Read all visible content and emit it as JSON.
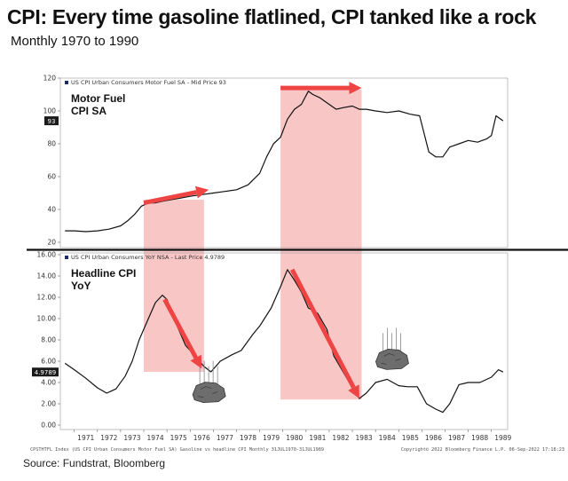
{
  "title": "CPI: Every time gasoline flatlined, CPI tanked like a rock",
  "subtitle": "Monthly 1970 to 1990",
  "source": "Source: Fundstrat, Bloomberg",
  "footer_left": "CPSTHTFL Index (US CPI Urban Consumers Motor Fuel SA) Gasoline vs headline CPI  Monthly 31JUL1970-31JUL1989",
  "footer_right": "Copyright© 2022 Bloomberg Finance L.P.   06-Sep-2022 17:18:23",
  "colors": {
    "line": "#111111",
    "band": "#f7b3b3",
    "arrow": "#ee4444",
    "tag": "#1a1a1a"
  },
  "chart_data": [
    {
      "type": "line",
      "panel_label": [
        "Motor Fuel",
        "CPI SA"
      ],
      "legend": "US CPI Urban Consumers Motor Fuel SA - Mid Price 93",
      "last_value_label": "93",
      "ylim": [
        20,
        120
      ],
      "yticks": [
        20,
        40,
        60,
        80,
        100,
        120
      ],
      "ytick_labels": [
        "20",
        "40",
        "60",
        "80",
        "100",
        "120"
      ],
      "x": [
        1970.6,
        1971.0,
        1971.5,
        1972.0,
        1972.5,
        1973.0,
        1973.3,
        1973.6,
        1973.9,
        1974.2,
        1974.5,
        1974.8,
        1975.2,
        1975.6,
        1976.0,
        1976.5,
        1977.0,
        1977.5,
        1978.0,
        1978.5,
        1979.0,
        1979.3,
        1979.6,
        1979.9,
        1980.2,
        1980.5,
        1980.8,
        1981.1,
        1981.3,
        1981.6,
        1982.0,
        1982.3,
        1982.6,
        1983.0,
        1983.3,
        1983.6,
        1984.0,
        1984.5,
        1985.0,
        1985.5,
        1985.9,
        1986.1,
        1986.3,
        1986.6,
        1986.9,
        1987.2,
        1987.6,
        1988.0,
        1988.4,
        1988.8,
        1989.0,
        1989.2,
        1989.5
      ],
      "y": [
        27,
        27,
        26.5,
        27,
        28,
        30,
        33,
        37,
        42,
        44,
        44,
        45,
        46,
        47,
        48,
        49,
        50,
        51,
        52,
        55,
        62,
        72,
        80,
        84,
        95,
        101,
        104,
        112,
        110,
        108,
        104,
        101,
        102,
        103,
        101,
        101,
        100,
        99,
        100,
        98,
        97,
        86,
        75,
        72,
        72,
        78,
        80,
        82,
        81,
        83,
        85,
        97,
        94
      ]
    },
    {
      "type": "line",
      "panel_label": [
        "Headline CPI",
        "YoY"
      ],
      "legend": "US CPI Urban Consumers YoY NSA - Last Price 4.9789",
      "last_value_label": "4.9789",
      "ylim": [
        0,
        16
      ],
      "yticks": [
        0,
        2,
        4,
        6,
        8,
        10,
        12,
        14,
        16
      ],
      "ytick_labels": [
        "0.00",
        "2.00",
        "4.00",
        "6.00",
        "8.00",
        "10.00",
        "12.00",
        "14.00",
        "16.00"
      ],
      "x": [
        1970.6,
        1971.0,
        1971.5,
        1972.0,
        1972.4,
        1972.8,
        1973.2,
        1973.5,
        1973.8,
        1974.2,
        1974.5,
        1974.8,
        1975.0,
        1975.4,
        1975.8,
        1976.2,
        1976.6,
        1976.9,
        1977.3,
        1977.8,
        1978.2,
        1978.7,
        1979.0,
        1979.5,
        1979.9,
        1980.2,
        1980.5,
        1980.8,
        1981.1,
        1981.5,
        1981.9,
        1982.2,
        1982.6,
        1983.0,
        1983.3,
        1983.6,
        1984.0,
        1984.5,
        1985.0,
        1985.4,
        1985.8,
        1986.2,
        1986.6,
        1986.9,
        1987.2,
        1987.6,
        1988.0,
        1988.5,
        1989.0,
        1989.3,
        1989.5
      ],
      "y": [
        5.8,
        5.2,
        4.4,
        3.5,
        3.0,
        3.4,
        4.6,
        6.0,
        8.0,
        10.0,
        11.5,
        12.2,
        11.8,
        9.5,
        7.5,
        6.5,
        5.5,
        5.0,
        6.0,
        6.6,
        7.0,
        8.5,
        9.3,
        11.0,
        13.0,
        14.6,
        13.6,
        12.5,
        11.0,
        10.5,
        9.0,
        6.5,
        5.0,
        3.5,
        2.5,
        3.0,
        4.0,
        4.3,
        3.7,
        3.6,
        3.6,
        2.0,
        1.5,
        1.2,
        2.0,
        3.8,
        4.0,
        4.0,
        4.5,
        5.2,
        4.98
      ]
    }
  ],
  "x_ticks": [
    "1971",
    "1972",
    "1973",
    "1974",
    "1975",
    "1976",
    "1977",
    "1978",
    "1979",
    "1980",
    "1981",
    "1982",
    "1983",
    "1984",
    "1985",
    "1986",
    "1987",
    "1988",
    "1989"
  ],
  "x_tick_values": [
    1971,
    1972,
    1973,
    1974,
    1975,
    1976,
    1977,
    1978,
    1979,
    1980,
    1981,
    1982,
    1983,
    1984,
    1985,
    1986,
    1987,
    1988,
    1989
  ],
  "xlim": [
    1970.4,
    1989.7
  ],
  "bands": [
    {
      "from": 1974.0,
      "to": 1976.6
    },
    {
      "from": 1979.9,
      "to": 1983.4
    }
  ],
  "arrows": [
    {
      "panel": 0,
      "from": [
        1974.0,
        44
      ],
      "to": [
        1976.8,
        52
      ]
    },
    {
      "panel": 0,
      "from": [
        1979.9,
        114
      ],
      "to": [
        1983.4,
        114
      ]
    },
    {
      "panel": 1,
      "from": [
        1974.9,
        11.8
      ],
      "to": [
        1976.5,
        5.3
      ]
    },
    {
      "panel": 1,
      "from": [
        1980.4,
        14.6
      ],
      "to": [
        1983.3,
        2.5
      ]
    }
  ],
  "rocks": [
    {
      "x": 1976.8,
      "y": 3.2
    },
    {
      "x": 1984.7,
      "y": 6.3
    }
  ]
}
